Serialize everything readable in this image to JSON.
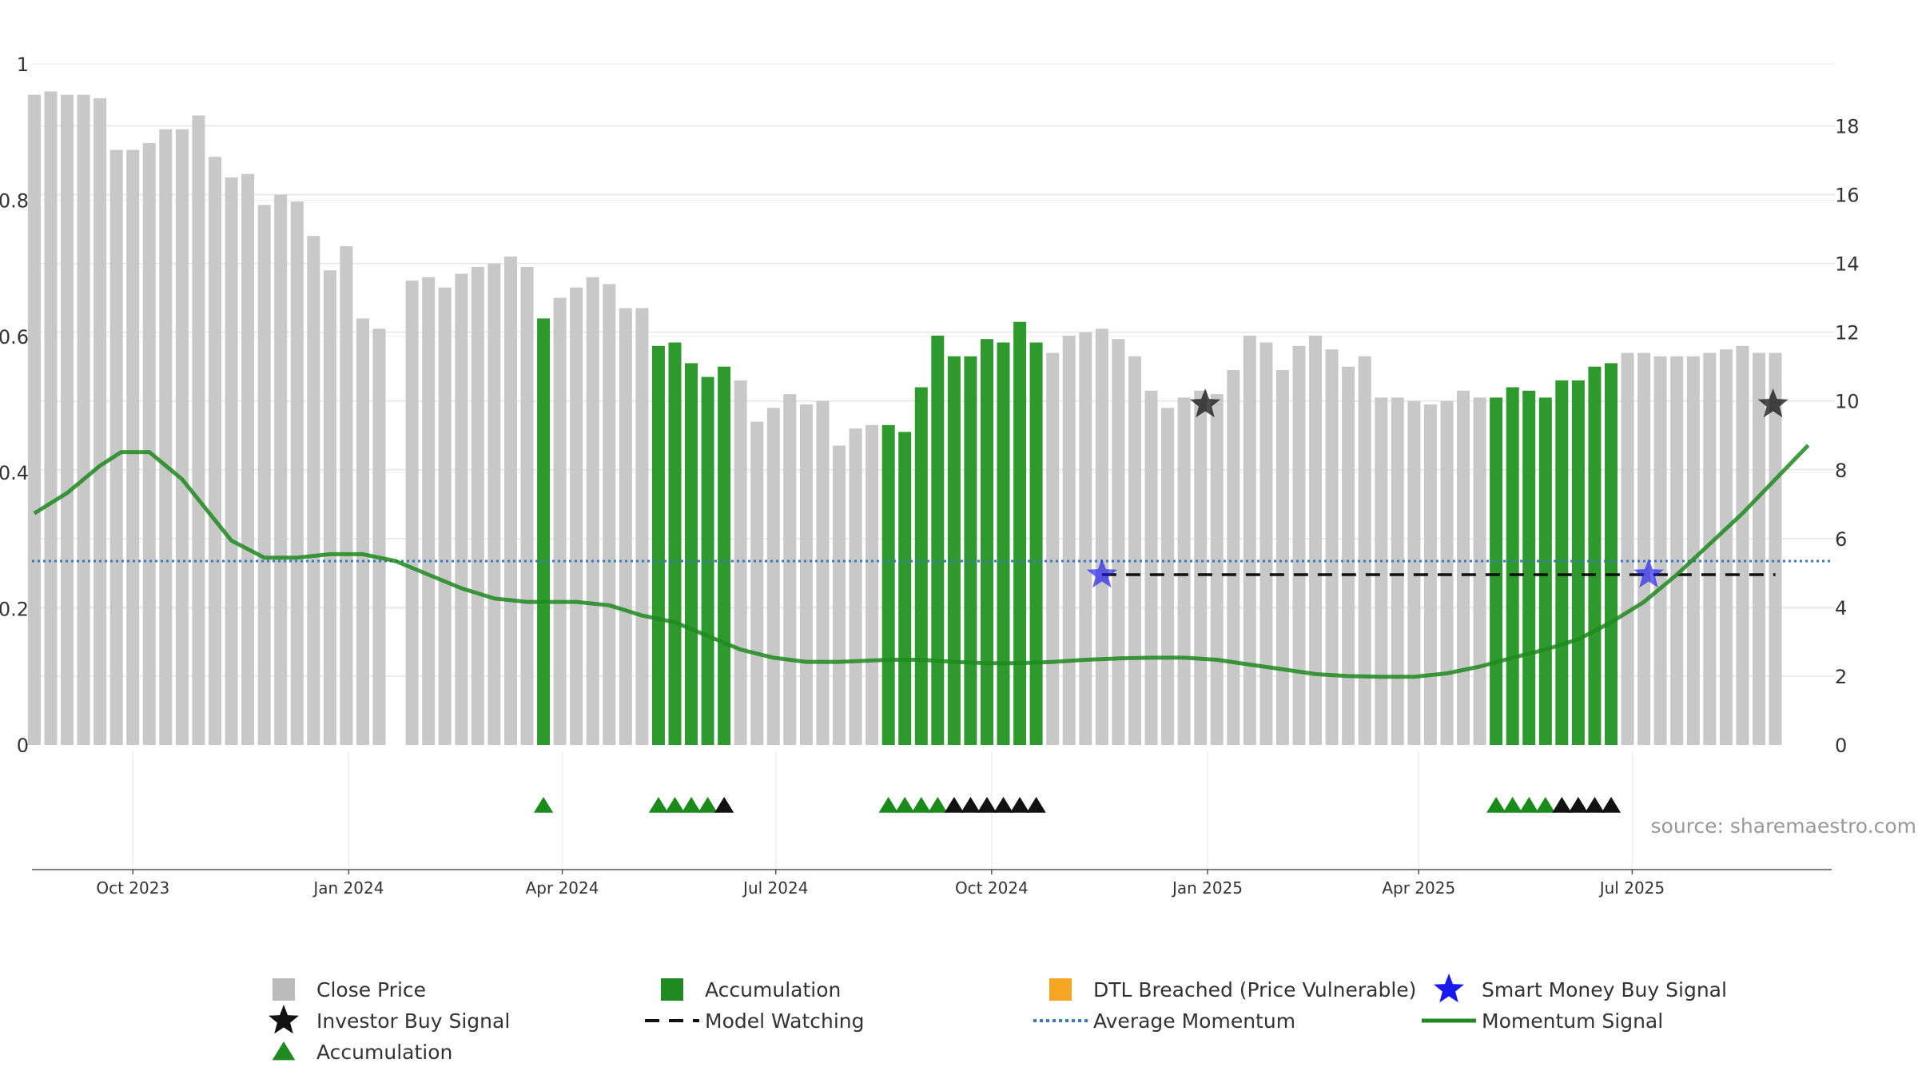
{
  "chart_data": {
    "type": "bar",
    "source": "source: sharemaestro.com",
    "left_axis": {
      "ylim": [
        0,
        1
      ],
      "ticks": [
        "0",
        "0.2",
        "0.4",
        "0.6",
        "0.8",
        "1"
      ]
    },
    "right_axis": {
      "ylim": [
        0,
        19.8
      ],
      "ticks": [
        "0",
        "2",
        "4",
        "6",
        "8",
        "10",
        "12",
        "14",
        "16",
        "18"
      ]
    },
    "x_axis": {
      "start": "2023-08-19",
      "end": "2025-09-24",
      "ticks": [
        {
          "date": "2023-10-01",
          "label": "Oct 2023"
        },
        {
          "date": "2024-01-01",
          "label": "Jan 2024"
        },
        {
          "date": "2024-04-01",
          "label": "Apr 2024"
        },
        {
          "date": "2024-07-01",
          "label": "Jul 2024"
        },
        {
          "date": "2024-10-01",
          "label": "Oct 2024"
        },
        {
          "date": "2025-01-01",
          "label": "Jan 2025"
        },
        {
          "date": "2025-04-01",
          "label": "Apr 2025"
        },
        {
          "date": "2025-07-01",
          "label": "Jul 2025"
        }
      ]
    },
    "series": [
      {
        "name": "Close Price",
        "axis": "right",
        "week_start": "2023-08-20",
        "color": "#c8c8c8",
        "accumulation_color": "#2e9a2e",
        "values": [
          18.9,
          19.0,
          18.9,
          18.9,
          18.8,
          17.3,
          17.3,
          17.5,
          17.9,
          17.9,
          18.3,
          17.1,
          16.5,
          16.6,
          15.7,
          16.0,
          15.8,
          14.8,
          13.8,
          14.5,
          12.4,
          12.1,
          null,
          13.5,
          13.6,
          13.3,
          13.7,
          13.9,
          14.0,
          14.2,
          13.9,
          12.4,
          13.0,
          13.3,
          13.6,
          13.4,
          12.7,
          12.7,
          11.6,
          11.7,
          11.1,
          10.7,
          11.0,
          10.6,
          9.4,
          9.8,
          10.2,
          9.9,
          10.0,
          8.7,
          9.2,
          9.3,
          9.3,
          9.1,
          10.4,
          11.9,
          11.3,
          11.3,
          11.8,
          11.7,
          12.3,
          11.7,
          11.4,
          11.9,
          12.0,
          12.1,
          11.8,
          11.3,
          10.3,
          9.8,
          10.1,
          10.3,
          10.2,
          10.9,
          11.9,
          11.7,
          10.9,
          11.6,
          11.9,
          11.5,
          11.0,
          11.3,
          10.1,
          10.1,
          10.0,
          9.9,
          10.0,
          10.3,
          10.1,
          10.1,
          10.4,
          10.3,
          10.1,
          10.6,
          10.6,
          11.0,
          11.1,
          11.4,
          11.4,
          11.3,
          11.3,
          11.3,
          11.4,
          11.5,
          11.6,
          11.4,
          11.4
        ],
        "accumulation_weeks": [
          31,
          38,
          39,
          40,
          41,
          42,
          52,
          53,
          54,
          55,
          56,
          57,
          58,
          59,
          60,
          61,
          89,
          90,
          91,
          92,
          93,
          94,
          95,
          96
        ]
      },
      {
        "name": "Momentum Signal",
        "axis": "left",
        "color": "#1f8a1f",
        "points": [
          [
            "2023-08-20",
            0.34
          ],
          [
            "2023-09-03",
            0.37
          ],
          [
            "2023-09-17",
            0.41
          ],
          [
            "2023-09-26",
            0.43
          ],
          [
            "2023-10-08",
            0.43
          ],
          [
            "2023-10-22",
            0.39
          ],
          [
            "2023-11-12",
            0.3
          ],
          [
            "2023-11-26",
            0.275
          ],
          [
            "2023-12-10",
            0.275
          ],
          [
            "2023-12-24",
            0.28
          ],
          [
            "2024-01-07",
            0.28
          ],
          [
            "2024-01-21",
            0.27
          ],
          [
            "2024-02-04",
            0.25
          ],
          [
            "2024-02-18",
            0.23
          ],
          [
            "2024-03-03",
            0.215
          ],
          [
            "2024-03-17",
            0.21
          ],
          [
            "2024-04-07",
            0.21
          ],
          [
            "2024-04-21",
            0.205
          ],
          [
            "2024-05-05",
            0.19
          ],
          [
            "2024-05-19",
            0.18
          ],
          [
            "2024-06-02",
            0.16
          ],
          [
            "2024-06-16",
            0.14
          ],
          [
            "2024-06-30",
            0.128
          ],
          [
            "2024-07-14",
            0.122
          ],
          [
            "2024-07-28",
            0.122
          ],
          [
            "2024-08-18",
            0.125
          ],
          [
            "2024-09-01",
            0.125
          ],
          [
            "2024-09-15",
            0.122
          ],
          [
            "2024-09-29",
            0.12
          ],
          [
            "2024-10-13",
            0.12
          ],
          [
            "2024-10-27",
            0.122
          ],
          [
            "2024-11-10",
            0.125
          ],
          [
            "2024-11-24",
            0.127
          ],
          [
            "2024-12-08",
            0.128
          ],
          [
            "2024-12-22",
            0.128
          ],
          [
            "2025-01-05",
            0.125
          ],
          [
            "2025-01-19",
            0.118
          ],
          [
            "2025-02-02",
            0.111
          ],
          [
            "2025-02-16",
            0.104
          ],
          [
            "2025-03-02",
            0.101
          ],
          [
            "2025-03-16",
            0.1
          ],
          [
            "2025-03-30",
            0.1
          ],
          [
            "2025-04-13",
            0.105
          ],
          [
            "2025-04-27",
            0.115
          ],
          [
            "2025-05-11",
            0.128
          ],
          [
            "2025-05-25",
            0.14
          ],
          [
            "2025-06-08",
            0.155
          ],
          [
            "2025-06-22",
            0.18
          ],
          [
            "2025-07-06",
            0.21
          ],
          [
            "2025-07-20",
            0.25
          ],
          [
            "2025-08-03",
            0.295
          ],
          [
            "2025-08-17",
            0.34
          ],
          [
            "2025-08-31",
            0.39
          ],
          [
            "2025-09-14",
            0.44
          ]
        ]
      },
      {
        "name": "Average Momentum",
        "axis": "left",
        "color": "#3a7bbf",
        "value": 0.27
      },
      {
        "name": "Model Watching",
        "axis": "left",
        "color": "#111111",
        "value": 0.25,
        "segments": [
          [
            "2024-11-17",
            "2025-08-31"
          ]
        ]
      },
      {
        "name": "Smart Money Buy Signal",
        "axis": "left",
        "color": "#1a1aee",
        "points": [
          [
            "2024-11-17",
            0.25
          ],
          [
            "2025-07-08",
            0.25
          ]
        ]
      },
      {
        "name": "Investor Buy Signal",
        "axis": "left",
        "color": "#111111",
        "points": [
          [
            "2024-12-31",
            0.5
          ],
          [
            "2025-08-30",
            0.5
          ]
        ]
      },
      {
        "name": "Accumulation",
        "marker": "triangle",
        "green_weeks": [
          31,
          38,
          39,
          40,
          41,
          52,
          53,
          54,
          55,
          89,
          90,
          91,
          92
        ],
        "black_weeks": [
          42,
          56,
          57,
          58,
          59,
          60,
          61,
          93,
          94,
          95,
          96
        ]
      }
    ],
    "legend": {
      "placement": "bottom",
      "items": [
        {
          "label": "Close Price",
          "symbol": "square",
          "color": "#bbbbbb"
        },
        {
          "label": "Accumulation",
          "symbol": "square",
          "color": "#1f8a1f"
        },
        {
          "label": "DTL Breached (Price Vulnerable)",
          "symbol": "square",
          "color": "#f5a623"
        },
        {
          "label": "Smart Money Buy Signal",
          "symbol": "star",
          "color": "#1a1aee"
        },
        {
          "label": "Investor Buy Signal",
          "symbol": "star",
          "color": "#111111"
        },
        {
          "label": "Model Watching",
          "symbol": "dash",
          "color": "#111111"
        },
        {
          "label": "Average Momentum",
          "symbol": "dot",
          "color": "#3a7bbf"
        },
        {
          "label": "Momentum Signal",
          "symbol": "line",
          "color": "#1f8a1f"
        },
        {
          "label": "Accumulation",
          "symbol": "triangle",
          "color": "#1f8a1f"
        }
      ]
    },
    "grid": true
  }
}
